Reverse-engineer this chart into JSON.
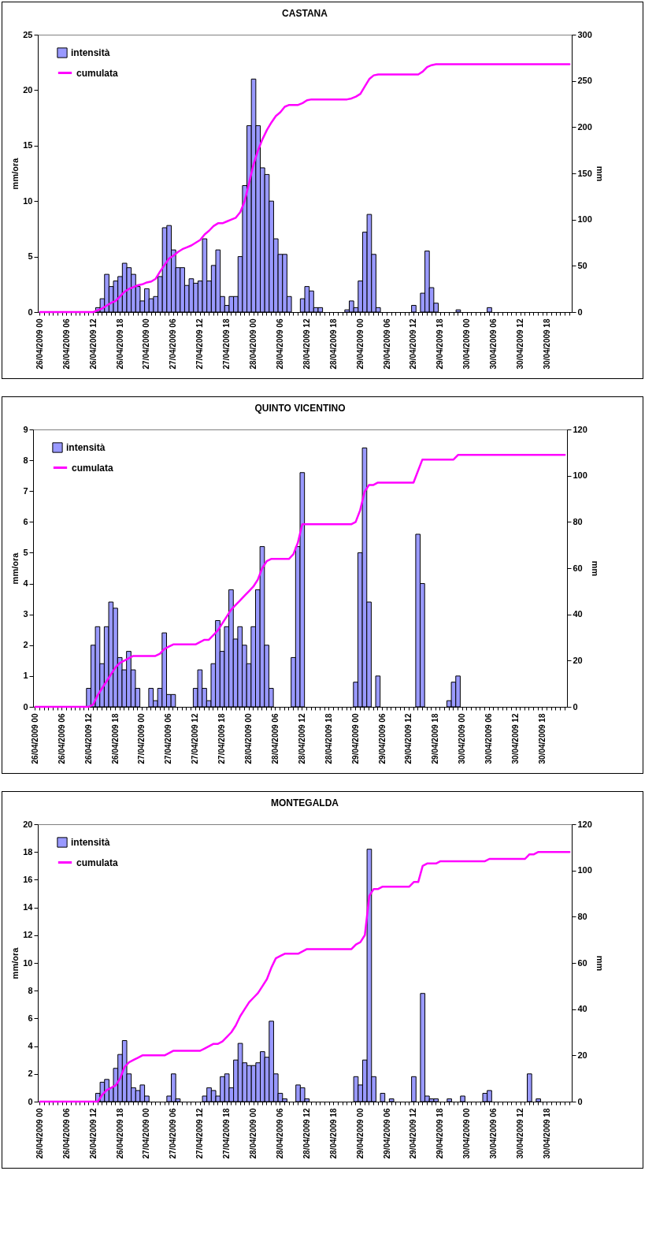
{
  "chart_data": [
    {
      "type": "bar",
      "title": "CASTANA",
      "ylabel": "mm/ora",
      "y2label": "mm",
      "legend": "top left",
      "grid": false,
      "categories": [
        "26/04/2009 00",
        null,
        null,
        null,
        null,
        null,
        "26/04/2009 06",
        null,
        null,
        null,
        null,
        null,
        "26/04/2009 12",
        null,
        null,
        null,
        null,
        null,
        "26/04/2009 18",
        null,
        null,
        null,
        null,
        null,
        "27/04/2009 00",
        null,
        null,
        null,
        null,
        null,
        "27/04/2009 06",
        null,
        null,
        null,
        null,
        null,
        "27/04/2009 12",
        null,
        null,
        null,
        null,
        null,
        "27/04/2009 18",
        null,
        null,
        null,
        null,
        null,
        "28/04/2009 00",
        null,
        null,
        null,
        null,
        null,
        "28/04/2009 06",
        null,
        null,
        null,
        null,
        null,
        "28/04/2009 12",
        null,
        null,
        null,
        null,
        null,
        "28/04/2009 18",
        null,
        null,
        null,
        null,
        null,
        "29/04/2009 00",
        null,
        null,
        null,
        null,
        null,
        "29/04/2009 06",
        null,
        null,
        null,
        null,
        null,
        "29/04/2009 12",
        null,
        null,
        null,
        null,
        null,
        "29/04/2009 18",
        null,
        null,
        null,
        null,
        null,
        "30/04/2009 00",
        null,
        null,
        null,
        null,
        null,
        "30/04/2009 06",
        null,
        null,
        null,
        null,
        null,
        "30/04/2009 12",
        null,
        null,
        null,
        null,
        null,
        "30/04/2009 18",
        null,
        null,
        null,
        null,
        null
      ],
      "ylim": [
        0,
        25
      ],
      "yticks": [
        0,
        5,
        10,
        15,
        20,
        25
      ],
      "y2lim": [
        0,
        300
      ],
      "y2ticks": [
        0,
        50,
        100,
        150,
        200,
        250,
        300
      ],
      "series": [
        {
          "name": "intensità",
          "color": "#9999ff",
          "values": [
            0,
            0,
            0,
            0,
            0,
            0,
            0,
            0,
            0,
            0,
            0,
            0,
            0,
            0.4,
            1.2,
            3.4,
            2.3,
            2.8,
            3.2,
            4.4,
            4.0,
            3.4,
            2.3,
            1.0,
            2.1,
            1.2,
            1.4,
            3.2,
            7.6,
            7.8,
            5.6,
            4.0,
            4.0,
            2.4,
            3.0,
            2.6,
            2.8,
            6.6,
            2.8,
            4.2,
            5.6,
            1.4,
            0.6,
            1.4,
            1.4,
            5.0,
            11.4,
            16.8,
            21.0,
            16.8,
            13.0,
            12.4,
            10.0,
            6.6,
            5.2,
            5.2,
            1.4,
            0,
            0,
            1.2,
            2.3,
            1.9,
            0.4,
            0.4,
            0,
            0,
            0,
            0,
            0,
            0.2,
            1.0,
            0.4,
            2.8,
            7.2,
            8.8,
            5.2,
            0.4,
            0,
            0,
            0,
            0,
            0,
            0,
            0,
            0.6,
            0,
            1.7,
            5.5,
            2.2,
            0.8,
            0,
            0,
            0,
            0,
            0.2,
            0,
            0,
            0,
            0,
            0,
            0,
            0.4,
            0,
            0,
            0,
            0,
            0,
            0,
            0,
            0,
            0,
            0,
            0,
            0,
            0,
            0,
            0,
            0,
            0,
            0
          ]
        },
        {
          "name": "cumulata",
          "type": "line",
          "axis": "y2",
          "color": "#ff00ff",
          "values": [
            0,
            0,
            0,
            0,
            0,
            0,
            0,
            0,
            0,
            0,
            0,
            0,
            0,
            2,
            4,
            7,
            10,
            12,
            17,
            22,
            25,
            27,
            29,
            30,
            32,
            33,
            36,
            44,
            51,
            58,
            61,
            65,
            68,
            70,
            72,
            75,
            78,
            84,
            88,
            93,
            96,
            96,
            98,
            100,
            102,
            108,
            120,
            140,
            160,
            175,
            187,
            197,
            205,
            212,
            216,
            222,
            224,
            224,
            224,
            226,
            229,
            230,
            230,
            230,
            230,
            230,
            230,
            230,
            230,
            230,
            231,
            233,
            236,
            244,
            252,
            256,
            257,
            257,
            257,
            257,
            257,
            257,
            257,
            257,
            257,
            257,
            260,
            265,
            267,
            268,
            268,
            268,
            268,
            268,
            268,
            268,
            268,
            268,
            268,
            268,
            268,
            268,
            268,
            268,
            268,
            268,
            268,
            268,
            268,
            268,
            268,
            268,
            268,
            268,
            268,
            268,
            268,
            268,
            268,
            268
          ]
        }
      ]
    },
    {
      "type": "bar",
      "title": "QUINTO VICENTINO",
      "ylabel": "mm/ora",
      "y2label": "mm",
      "legend": "top left",
      "grid": false,
      "categories": [
        "26/04/2009 00",
        null,
        null,
        null,
        null,
        null,
        "26/04/2009 06",
        null,
        null,
        null,
        null,
        null,
        "26/04/2009 12",
        null,
        null,
        null,
        null,
        null,
        "26/04/2009 18",
        null,
        null,
        null,
        null,
        null,
        "27/04/2009 00",
        null,
        null,
        null,
        null,
        null,
        "27/04/2009 06",
        null,
        null,
        null,
        null,
        null,
        "27/04/2009 12",
        null,
        null,
        null,
        null,
        null,
        "27/04/2009 18",
        null,
        null,
        null,
        null,
        null,
        "28/04/2009 00",
        null,
        null,
        null,
        null,
        null,
        "28/04/2009 06",
        null,
        null,
        null,
        null,
        null,
        "28/04/2009 12",
        null,
        null,
        null,
        null,
        null,
        "28/04/2009 18",
        null,
        null,
        null,
        null,
        null,
        "29/04/2009 00",
        null,
        null,
        null,
        null,
        null,
        "29/04/2009 06",
        null,
        null,
        null,
        null,
        null,
        "29/04/2009 12",
        null,
        null,
        null,
        null,
        null,
        "29/04/2009 18",
        null,
        null,
        null,
        null,
        null,
        "30/04/2009 00",
        null,
        null,
        null,
        null,
        null,
        "30/04/2009 06",
        null,
        null,
        null,
        null,
        null,
        "30/04/2009 12",
        null,
        null,
        null,
        null,
        null,
        "30/04/2009 18",
        null,
        null,
        null,
        null,
        null
      ],
      "ylim": [
        0,
        9
      ],
      "yticks": [
        0,
        1,
        2,
        3,
        4,
        5,
        6,
        7,
        8,
        9
      ],
      "y2lim": [
        0,
        120
      ],
      "y2ticks": [
        0,
        20,
        40,
        60,
        80,
        100,
        120
      ],
      "series": [
        {
          "name": "intensità",
          "color": "#9999ff",
          "values": [
            0,
            0,
            0,
            0,
            0,
            0,
            0,
            0,
            0,
            0,
            0,
            0,
            0.6,
            2.0,
            2.6,
            1.4,
            2.6,
            3.4,
            3.2,
            1.6,
            1.2,
            1.8,
            1.2,
            0.6,
            0,
            0,
            0.6,
            0.2,
            0.6,
            2.4,
            0.4,
            0.4,
            0,
            0,
            0,
            0,
            0.6,
            1.2,
            0.6,
            0.2,
            1.4,
            2.8,
            1.8,
            2.6,
            3.8,
            2.2,
            2.6,
            2.0,
            1.4,
            2.6,
            3.8,
            5.2,
            2.0,
            0.6,
            0,
            0,
            0,
            0,
            1.6,
            5.2,
            7.6,
            0,
            0,
            0,
            0,
            0,
            0,
            0,
            0,
            0,
            0,
            0,
            0.8,
            5.0,
            8.4,
            3.4,
            0,
            1.0,
            0,
            0,
            0,
            0,
            0,
            0,
            0,
            0,
            5.6,
            4.0,
            0,
            0,
            0,
            0,
            0,
            0.2,
            0.8,
            1.0,
            0,
            0,
            0,
            0,
            0,
            0,
            0,
            0,
            0,
            0,
            0,
            0,
            0,
            0,
            0,
            0,
            0,
            0,
            0,
            0,
            0,
            0,
            0,
            0
          ]
        },
        {
          "name": "cumulata",
          "type": "line",
          "axis": "y2",
          "color": "#ff00ff",
          "values": [
            0,
            0,
            0,
            0,
            0,
            0,
            0,
            0,
            0,
            0,
            0,
            0,
            0,
            1,
            5,
            8,
            11,
            14,
            17,
            19,
            20,
            21,
            22,
            22,
            22,
            22,
            22,
            22,
            23,
            25,
            26,
            27,
            27,
            27,
            27,
            27,
            27,
            28,
            29,
            29,
            31,
            33,
            36,
            39,
            42,
            44,
            46,
            48,
            50,
            52,
            55,
            60,
            63,
            64,
            64,
            64,
            64,
            64,
            66,
            71,
            79,
            79,
            79,
            79,
            79,
            79,
            79,
            79,
            79,
            79,
            79,
            79,
            80,
            85,
            93,
            96,
            96,
            97,
            97,
            97,
            97,
            97,
            97,
            97,
            97,
            97,
            102,
            107,
            107,
            107,
            107,
            107,
            107,
            107,
            107,
            109,
            109,
            109,
            109,
            109,
            109,
            109,
            109,
            109,
            109,
            109,
            109,
            109,
            109,
            109,
            109,
            109,
            109,
            109,
            109,
            109,
            109,
            109,
            109,
            109
          ]
        }
      ]
    },
    {
      "type": "bar",
      "title": "MONTEGALDA",
      "ylabel": "mm/ora",
      "y2label": "mm",
      "legend": "top left",
      "grid": false,
      "categories": [
        "26/04/2009 00",
        null,
        null,
        null,
        null,
        null,
        "26/04/2009 06",
        null,
        null,
        null,
        null,
        null,
        "26/04/2009 12",
        null,
        null,
        null,
        null,
        null,
        "26/04/2009 18",
        null,
        null,
        null,
        null,
        null,
        "27/04/2009 00",
        null,
        null,
        null,
        null,
        null,
        "27/04/2009 06",
        null,
        null,
        null,
        null,
        null,
        "27/04/2009 12",
        null,
        null,
        null,
        null,
        null,
        "27/04/2009 18",
        null,
        null,
        null,
        null,
        null,
        "28/04/2009 00",
        null,
        null,
        null,
        null,
        null,
        "28/04/2009 06",
        null,
        null,
        null,
        null,
        null,
        "28/04/2009 12",
        null,
        null,
        null,
        null,
        null,
        "28/04/2009 18",
        null,
        null,
        null,
        null,
        null,
        "29/04/2009 00",
        null,
        null,
        null,
        null,
        null,
        "29/04/2009 06",
        null,
        null,
        null,
        null,
        null,
        "29/04/2009 12",
        null,
        null,
        null,
        null,
        null,
        "29/04/2009 18",
        null,
        null,
        null,
        null,
        null,
        "30/04/2009 00",
        null,
        null,
        null,
        null,
        null,
        "30/04/2009 06",
        null,
        null,
        null,
        null,
        null,
        "30/04/2009 12",
        null,
        null,
        null,
        null,
        null,
        "30/04/2009 18",
        null,
        null,
        null,
        null,
        null
      ],
      "ylim": [
        0,
        20
      ],
      "yticks": [
        0,
        2,
        4,
        6,
        8,
        10,
        12,
        14,
        16,
        18,
        20
      ],
      "y2lim": [
        0,
        120
      ],
      "y2ticks": [
        0,
        20,
        40,
        60,
        80,
        100,
        120
      ],
      "series": [
        {
          "name": "intensità",
          "color": "#9999ff",
          "values": [
            0,
            0,
            0,
            0,
            0,
            0,
            0,
            0,
            0,
            0,
            0,
            0,
            0,
            0.6,
            1.4,
            1.6,
            1.0,
            2.4,
            3.4,
            4.4,
            2.0,
            1.0,
            0.8,
            1.2,
            0.4,
            0,
            0,
            0,
            0,
            0.4,
            2.0,
            0.2,
            0,
            0,
            0,
            0,
            0,
            0.4,
            1.0,
            0.8,
            0.4,
            1.8,
            2.0,
            1.0,
            3.0,
            4.2,
            2.8,
            2.6,
            2.6,
            2.8,
            3.6,
            3.2,
            5.8,
            2.0,
            0.6,
            0.2,
            0,
            0,
            1.2,
            1.0,
            0.2,
            0,
            0,
            0,
            0,
            0,
            0,
            0,
            0,
            0,
            0,
            1.8,
            1.2,
            3.0,
            18.2,
            1.8,
            0,
            0.6,
            0,
            0.2,
            0,
            0,
            0,
            0,
            1.8,
            0,
            7.8,
            0.4,
            0.2,
            0.2,
            0,
            0,
            0.2,
            0,
            0,
            0.4,
            0,
            0,
            0,
            0,
            0.6,
            0.8,
            0,
            0,
            0,
            0,
            0,
            0,
            0,
            0,
            2.0,
            0,
            0.2,
            0,
            0,
            0,
            0,
            0,
            0,
            0
          ]
        },
        {
          "name": "cumulata",
          "type": "line",
          "axis": "y2",
          "color": "#ff00ff",
          "values": [
            0,
            0,
            0,
            0,
            0,
            0,
            0,
            0,
            0,
            0,
            0,
            0,
            0,
            0,
            3,
            5,
            6,
            7,
            10,
            15,
            17,
            18,
            19,
            20,
            20,
            20,
            20,
            20,
            20,
            21,
            22,
            22,
            22,
            22,
            22,
            22,
            22,
            23,
            24,
            25,
            25,
            26,
            28,
            30,
            33,
            37,
            40,
            43,
            45,
            47,
            50,
            53,
            58,
            62,
            63,
            64,
            64,
            64,
            64,
            65,
            66,
            66,
            66,
            66,
            66,
            66,
            66,
            66,
            66,
            66,
            66,
            68,
            69,
            72,
            89,
            92,
            92,
            93,
            93,
            93,
            93,
            93,
            93,
            93,
            95,
            95,
            102,
            103,
            103,
            103,
            104,
            104,
            104,
            104,
            104,
            104,
            104,
            104,
            104,
            104,
            104,
            105,
            105,
            105,
            105,
            105,
            105,
            105,
            105,
            105,
            107,
            107,
            108,
            108,
            108,
            108,
            108,
            108,
            108,
            108
          ]
        }
      ]
    }
  ]
}
